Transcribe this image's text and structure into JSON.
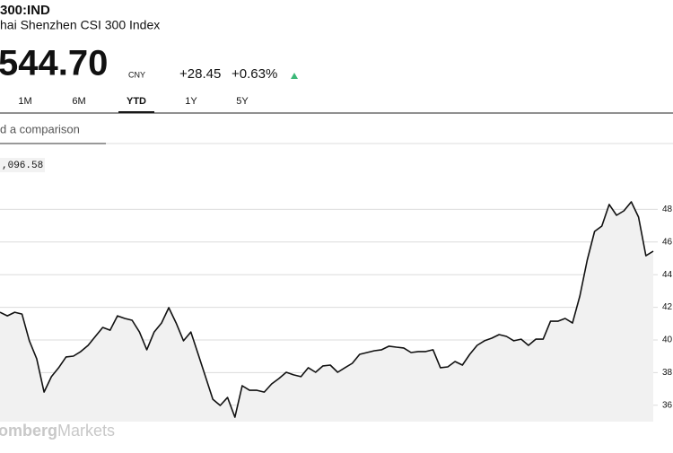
{
  "header": {
    "ticker": "300:IND",
    "name": "hai Shenzhen CSI 300 Index",
    "price": "544.70",
    "currency": "CNY",
    "change": "+28.45",
    "change_pct": "+0.63%"
  },
  "tabs": [
    "1M",
    "6M",
    "YTD",
    "1Y",
    "5Y"
  ],
  "active_tab": "YTD",
  "comparison_placeholder": "d a comparison",
  "price_marker": ",096.58",
  "watermark": {
    "bold": "omberg",
    "light": "Markets"
  },
  "chart_data": {
    "type": "line",
    "series": [
      {
        "color": "#111111",
        "values": [
          41.7,
          41.48,
          41.7,
          41.59,
          39.95,
          38.85,
          36.81,
          37.75,
          38.3,
          38.96,
          39.01,
          39.29,
          39.67,
          40.22,
          40.77,
          40.6,
          41.48,
          41.32,
          41.21,
          40.49,
          39.4,
          40.49,
          41.04,
          41.98,
          41.04,
          39.95,
          40.49,
          39.12,
          37.75,
          36.37,
          35.99,
          36.48,
          35.27,
          37.2,
          36.92,
          36.92,
          36.81,
          37.31,
          37.64,
          38.02,
          37.86,
          37.75,
          38.3,
          38.02,
          38.41,
          38.46,
          38.02,
          38.3,
          38.57,
          39.12,
          39.23,
          39.34,
          39.4,
          39.62,
          39.56,
          39.51,
          39.23,
          39.29,
          39.29,
          39.4,
          38.3,
          38.35,
          38.68,
          38.46,
          39.12,
          39.67,
          39.95,
          40.11,
          40.33,
          40.22,
          39.95,
          40.05,
          39.67,
          40.05,
          40.05,
          41.15,
          41.15,
          41.32,
          41.04,
          42.69,
          44.89,
          46.65,
          46.98,
          48.3,
          47.64,
          47.91,
          48.46,
          47.53,
          45.16,
          45.44
        ]
      }
    ],
    "ylim": [
      35,
      50
    ],
    "yticks": [
      36,
      38,
      40,
      42,
      44,
      46,
      48
    ],
    "grid": true,
    "fill": "#f1f1f1"
  }
}
